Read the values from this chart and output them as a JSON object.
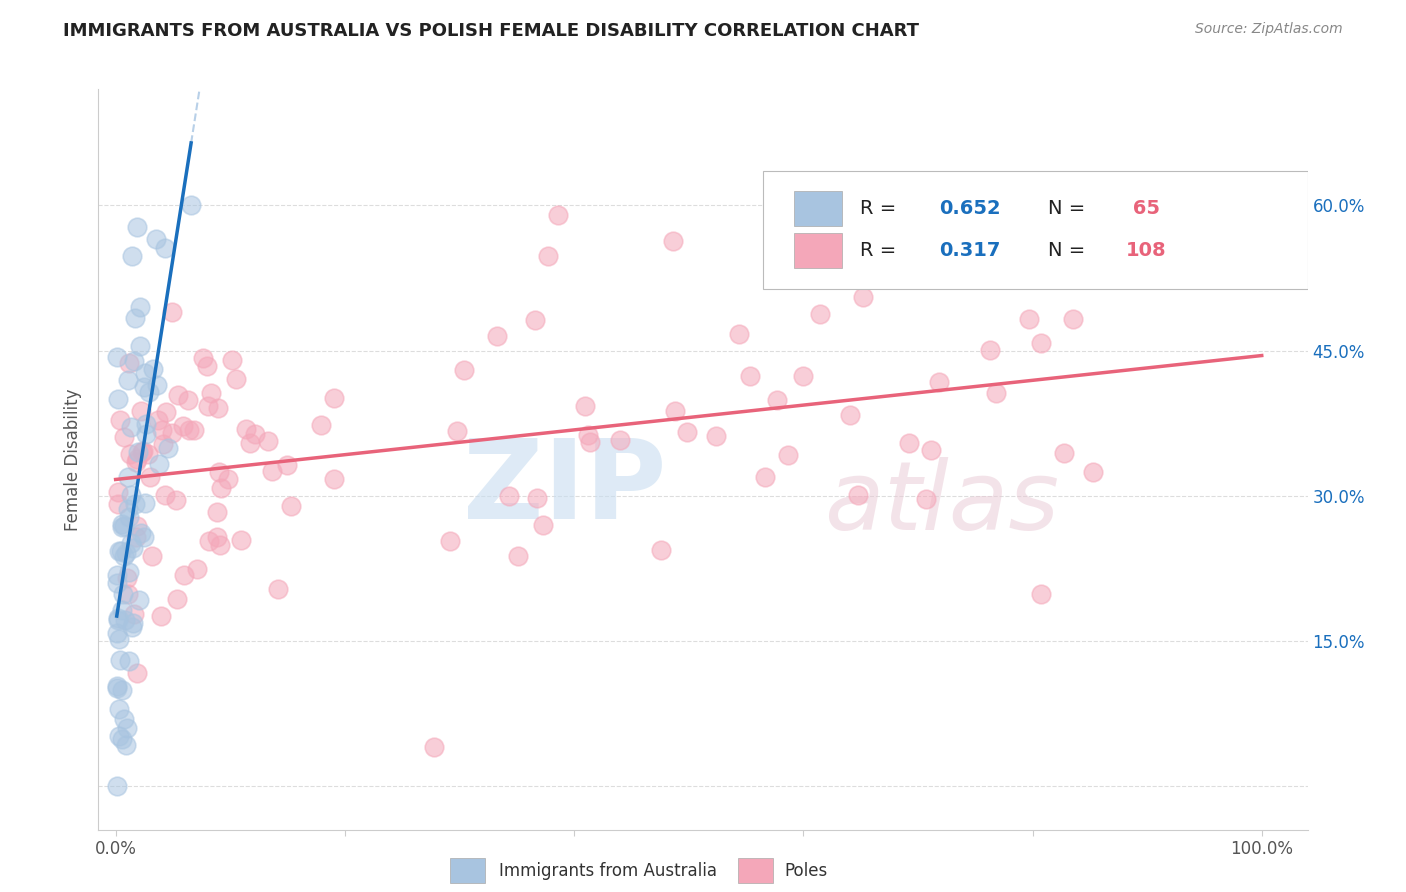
{
  "title": "IMMIGRANTS FROM AUSTRALIA VS POLISH FEMALE DISABILITY CORRELATION CHART",
  "source": "Source: ZipAtlas.com",
  "ylabel": "Female Disability",
  "blue_R": 0.652,
  "blue_N": 65,
  "pink_R": 0.317,
  "pink_N": 108,
  "blue_color": "#a8c4e0",
  "blue_line_color": "#1a6fbd",
  "blue_dashed_color": "#b8d0e8",
  "pink_color": "#f4a7b9",
  "pink_line_color": "#e8637a",
  "legend_color": "#1a6fbd",
  "legend_N_color": "#e8637a",
  "background_color": "#ffffff",
  "grid_color": "#dddddd",
  "blue_scatter_seed": 10,
  "pink_scatter_seed": 20
}
